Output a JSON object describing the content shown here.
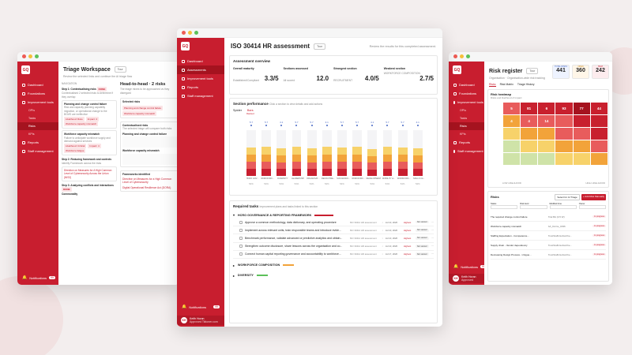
{
  "colors": {
    "brand": "#c81e2f",
    "brand_dark": "#a5131f"
  },
  "left": {
    "logo": "GQ",
    "nav": [
      {
        "label": "Dashboard"
      },
      {
        "label": "Foundations"
      },
      {
        "label": "Improvement tools"
      },
      {
        "label": "OPIs"
      },
      {
        "label": "Tasks"
      },
      {
        "label": "Risks"
      },
      {
        "label": "KPIs"
      },
      {
        "label": "Reports"
      },
      {
        "label": "Staff management"
      }
    ],
    "title": "Triage Workspace",
    "tour": "Tour",
    "subtitle": "Review the selected links and continue the AI triage flow",
    "steps_label": "NAVIGATION",
    "step1": "Step 1: Contextualising risks",
    "step1_tag": "DONE",
    "step1_desc": "Contextualised 2 selected risks to determine if they overlap",
    "risk_a": "Planning and change control failure",
    "risk_a_desc": "Risk and capacity planning capability migration, or operational change to the BCMS are ineffective",
    "risk_a_tags": [
      "Likelihood: Rare",
      "Impact: 4",
      "Workforce capacity mismatch"
    ],
    "risk_b": "Workforce capacity mismatch",
    "risk_b_desc": "Failure to anticipate workforce supply and demand against services",
    "risk_b_tags": [
      "Likelihood: Critical",
      "Impact: 4",
      "Workforce fatigue"
    ],
    "step2": "Step 2: Reducing framework and controls",
    "step2_desc": "Identify Framework across the risks",
    "step2_a": "Direction on Measures for A High Common Level of Cybersecurity Across the Union (NIS2)",
    "step3": "Step 3: Analyzing conflicts and interactions",
    "step3_tag": "DONE",
    "step3_b": "Commonality",
    "h2h_title": "Head-to-head · 2 risks",
    "h2h_desc": "The triage mixes to be approached vs they disregard",
    "selected": "Selected risks",
    "sel_tags": [
      "Planning and change control failure",
      "Workforce capacity mismatch"
    ],
    "contextualised": "Contextualised risks",
    "ctx_desc": "The selected triage will compare both risks",
    "ctx_a": "Planning and change control failure",
    "ctx_b": "Workforce capacity mismatch",
    "frameworks": "Frameworks identified",
    "fw_a": "Directive on Measures for a High Common Level of Cybersecurity",
    "fw_b": "Digital Operational Resilience Act (DORA)",
    "notif": "Notifications",
    "notif_count": "99"
  },
  "center": {
    "logo": "GQ",
    "nav": [
      {
        "label": "Dashboard"
      },
      {
        "label": "Assessments"
      },
      {
        "label": "Improvement tools"
      },
      {
        "label": "Reports"
      },
      {
        "label": "Staff management"
      }
    ],
    "title": "ISO 30414 HR assessment",
    "tour": "Tour",
    "review": "Review the results for this completed assessment.",
    "overview_title": "Assessment overview",
    "kpis": [
      {
        "label": "Overall maturity",
        "sub": "Established/Compliant",
        "value": "3.3/5"
      },
      {
        "label": "Sections assessed",
        "sub": "All scored",
        "value": "12.0"
      },
      {
        "label": "Strongest section",
        "sub": "RECRUITMENT",
        "value": "4.0/5"
      },
      {
        "label": "Weakest section",
        "sub": "WORKFORCE COMPOSITION",
        "value": "2.7/5"
      }
    ],
    "perf_title": "Section performance",
    "perf_desc": "Click a section to view details and add actions",
    "tabs": [
      "Spider",
      "Bars"
    ],
    "tab_active_sub": "Ranked",
    "bar_top": [
      "5.7",
      "5.7",
      "4.1",
      "5.7",
      "5.7",
      "4.1",
      "5.7",
      "5.7",
      "4.1",
      "5.7",
      "5.7",
      "4.1"
    ],
    "bar_cats": [
      "HCRO GOV...",
      "WORKFORC...",
      "DIVERSITY",
      "LEADERSHIP",
      "ORGANISAT...",
      "RECRUITME...",
      "SUCCESSIO...",
      "WORKFORC...",
      "DEVELOPMENT",
      "MOBILITY &...",
      "WORKFORC...",
      "SKILLS CA..."
    ],
    "bar_pcts": [
      "54%",
      "54%",
      "54%",
      "54%",
      "54%",
      "54%",
      "54%",
      "54%",
      "54%",
      "54%",
      "54%",
      "54%"
    ],
    "bar_heights": [
      0.62,
      0.63,
      0.6,
      0.63,
      0.6,
      0.63,
      0.62,
      0.63,
      0.58,
      0.63,
      0.62,
      0.6
    ],
    "req_title": "Required tasks",
    "req_desc": "Improvement plans and tasks linked to this section",
    "group1": "HCRO GOVERNANCE & REPORTING FRAMEWORK",
    "tasks": [
      {
        "text": "Approve a common methodology, data dictionary, and operating procedure",
        "code": "ISO 30414 HR assessment",
        "date": "Jul 10, 2026",
        "pri": "Highest",
        "status": "Not started"
      },
      {
        "text": "Implement across relevant units, train responsible teams and introduce evide...",
        "code": "ISO 30414 HR assessment",
        "date": "Jul 10, 2026",
        "pri": "Highest",
        "status": "Not started"
      },
      {
        "text": "Benchmark performance, validate advanced or predictive analytics and obtain...",
        "code": "ISO 30414 HR assessment",
        "date": "Jul 10, 2026",
        "pri": "Highest",
        "status": "Not started"
      },
      {
        "text": "Strengthen outcome disclosure, share lessons across the organisation and co...",
        "code": "ISO 30414 HR assessment",
        "date": "Jul 10, 2026",
        "pri": "Highest",
        "status": "Not started"
      },
      {
        "text": "Connect human capital reporting governance and accountability to workforce...",
        "code": "ISO 30414 HR assessment",
        "date": "Jul 17, 2026",
        "pri": "Highest",
        "status": "Not started"
      }
    ],
    "group2": "WORKFORCE COMPOSITION",
    "group3": "DIVERSITY",
    "notif": "Notifications",
    "notif_count": "99",
    "user_name": "Keith Horan",
    "user_role": "Approved Tiktoner.com"
  },
  "right": {
    "logo": "GQ",
    "nav": [
      {
        "label": "Dashboard"
      },
      {
        "label": "Foundations"
      },
      {
        "label": "Improvement tools"
      },
      {
        "label": "OPIs"
      },
      {
        "label": "Tasks"
      },
      {
        "label": "Risks"
      },
      {
        "label": "KPIs"
      },
      {
        "label": "Reports"
      },
      {
        "label": "Staff management"
      }
    ],
    "title": "Risk register",
    "tour": "Tour",
    "subtitle": "Organisation · Organisation-wide risk tracking",
    "stats": [
      {
        "label": "TOTAL RISKS",
        "value": "441"
      },
      {
        "label": "OPEN",
        "value": "360"
      },
      {
        "label": "HIGH",
        "value": "242"
      }
    ],
    "tabs": [
      "Risks",
      "Risk Matrix",
      "Triage History"
    ],
    "heat_title": "Risk heatmap",
    "heat_desc": "Risks and likelihood of impact",
    "heat": [
      [
        {
          "v": "5",
          "c": "#e85c5c"
        },
        {
          "v": "81",
          "c": "#c8202e"
        },
        {
          "v": "6",
          "c": "#c8202e"
        },
        {
          "v": "93",
          "c": "#c8202e"
        },
        {
          "v": "77",
          "c": "#a5131f"
        },
        {
          "v": "44",
          "c": "#c8202e"
        }
      ],
      [
        {
          "v": "4",
          "c": "#f2a33a"
        },
        {
          "v": "4",
          "c": "#e85c5c"
        },
        {
          "v": "14",
          "c": "#e85c5c"
        },
        {
          "v": "",
          "c": "#e85c5c"
        },
        {
          "v": "",
          "c": "#c8202e"
        },
        {
          "v": "",
          "c": "#c8202e"
        }
      ],
      [
        {
          "v": "",
          "c": "#f7d26a"
        },
        {
          "v": "",
          "c": "#f2a33a"
        },
        {
          "v": "",
          "c": "#f2a33a"
        },
        {
          "v": "",
          "c": "#e85c5c"
        },
        {
          "v": "",
          "c": "#e85c5c"
        },
        {
          "v": "",
          "c": "#c8202e"
        }
      ],
      [
        {
          "v": "",
          "c": "#cfe3a8"
        },
        {
          "v": "",
          "c": "#f7d26a"
        },
        {
          "v": "",
          "c": "#f7d26a"
        },
        {
          "v": "",
          "c": "#f2a33a"
        },
        {
          "v": "",
          "c": "#f2a33a"
        },
        {
          "v": "",
          "c": "#e85c5c"
        }
      ],
      [
        {
          "v": "",
          "c": "#cfe3a8"
        },
        {
          "v": "",
          "c": "#cfe3a8"
        },
        {
          "v": "",
          "c": "#cfe3a8"
        },
        {
          "v": "",
          "c": "#f7d26a"
        },
        {
          "v": "",
          "c": "#f7d26a"
        },
        {
          "v": "",
          "c": "#f2a33a"
        }
      ]
    ],
    "low_label": "LOW LIKELIHOOD",
    "high_label": "HIGH LIKELIHOOD",
    "risks_title": "Risks",
    "select_ai": "Select for AI Triage",
    "add_risk": "+ Add Risk Manually",
    "filters": [
      "Status",
      "Risk level",
      "Modified time",
      "Owner"
    ],
    "risk_rows": [
      {
        "name": "The required change control failure",
        "owner": "Trial BA (0.5 W)",
        "status": "In progress"
      },
      {
        "name": "Workforce capacity mismatch",
        "owner": "SA_Dorrie_0036",
        "status": "In progress"
      },
      {
        "name": "Staffing Expectation - Competence...",
        "owner": "TrustStaffs/subscribe...",
        "status": "In progress"
      },
      {
        "name": "Supply chain - Vendor dependency",
        "owner": "TrustStaffs/subscribe...",
        "status": "In progress"
      },
      {
        "name": "Decreasing Design Process - Unigue...",
        "owner": "TrustStaffs/subscribe...",
        "status": "In progress"
      }
    ],
    "notif": "Notifications",
    "notif_count": "99",
    "user_name": "Keith Horan",
    "user_role": "Approved"
  }
}
